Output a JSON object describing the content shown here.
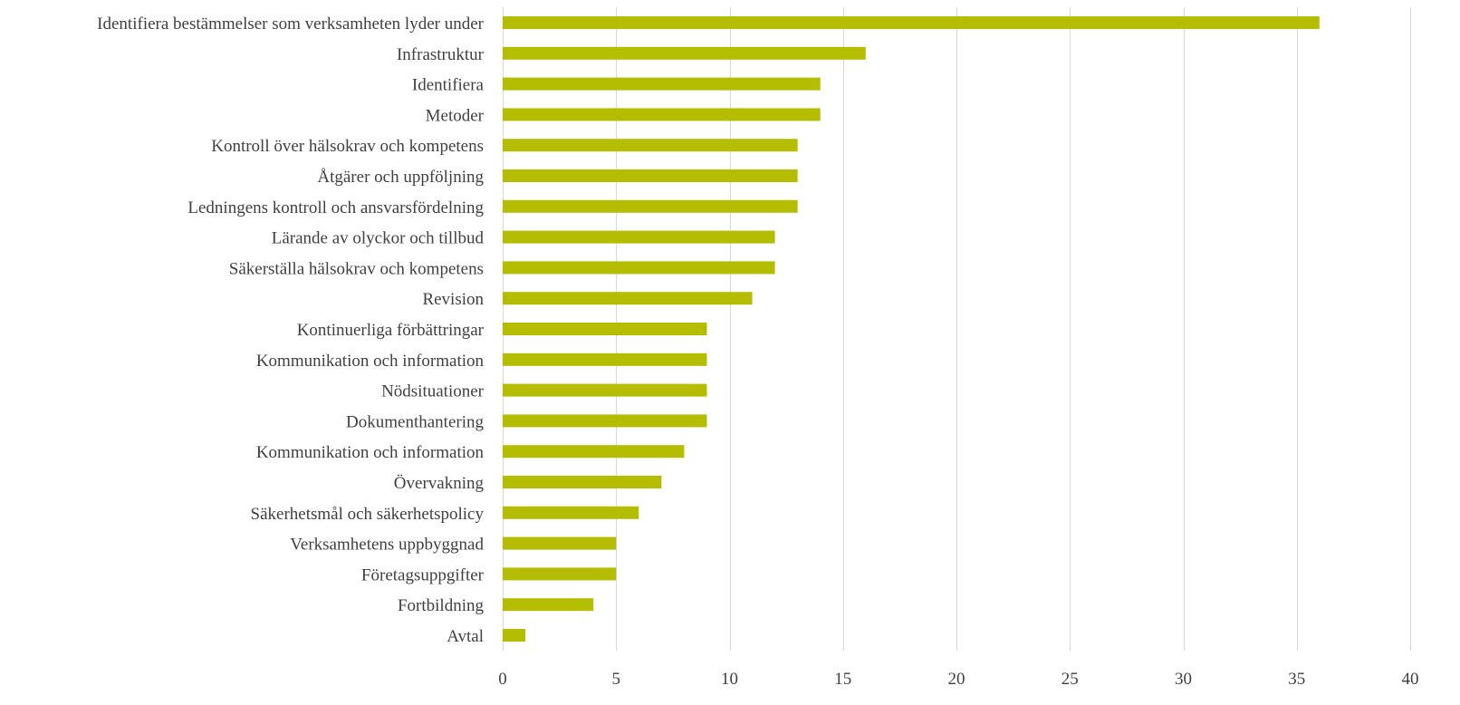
{
  "chart_data": {
    "type": "bar",
    "orientation": "horizontal",
    "title": "",
    "xlabel": "",
    "ylabel": "",
    "categories": [
      "Identifiera bestämmelser som verksamheten lyder under",
      "Infrastruktur",
      "Identifiera",
      "Metoder",
      "Kontroll över hälsokrav och kompetens",
      "Åtgärer och uppföljning",
      "Ledningens kontroll och ansvarsfördelning",
      "Lärande av olyckor och tillbud",
      "Säkerställa hälsokrav och kompetens",
      "Revision",
      "Kontinuerliga förbättringar",
      "Kommunikation och information",
      "Nödsituationer",
      "Dokumenthantering",
      "Kommunikation och information",
      "Övervakning",
      "Säkerhetsmål och säkerhetspolicy",
      "Verksamhetens uppbyggnad",
      "Företagsuppgifter",
      "Fortbildning",
      "Avtal"
    ],
    "values": [
      36,
      16,
      14,
      14,
      13,
      13,
      13,
      12,
      12,
      11,
      9,
      9,
      9,
      9,
      8,
      7,
      6,
      5,
      5,
      4,
      1
    ],
    "xlim": [
      0,
      40
    ],
    "xticks": [
      0,
      5,
      10,
      15,
      20,
      25,
      30,
      35,
      40
    ],
    "grid": "vertical",
    "legend": "none",
    "bar_color": "#b5bd00"
  }
}
